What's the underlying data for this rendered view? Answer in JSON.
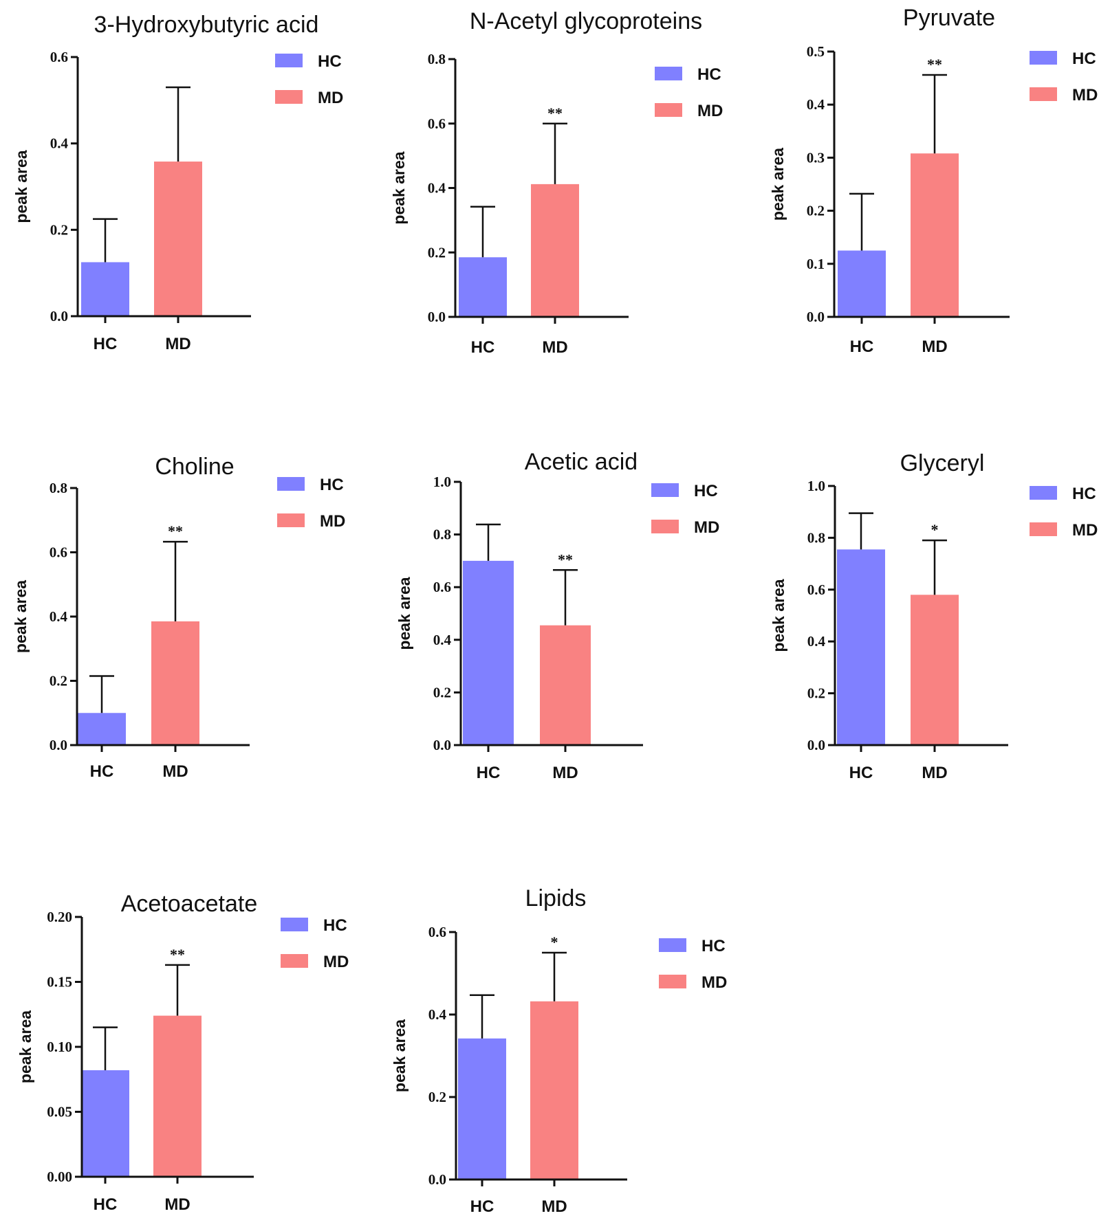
{
  "colors": {
    "HC": "#8080ff",
    "MD": "#f98282",
    "axis": "#111111"
  },
  "chart_data": [
    {
      "type": "bar",
      "title": "3-Hydroxybutyric acid",
      "ylabel": "peak area",
      "xlabel": "",
      "categories": [
        "HC",
        "MD"
      ],
      "values": [
        0.125,
        0.358
      ],
      "errors": [
        0.1,
        0.172
      ],
      "ylim": [
        0,
        0.6
      ],
      "yticks": [
        "0.0",
        "0.2",
        "0.4",
        "0.6"
      ],
      "significance": "",
      "legend": [
        "HC",
        "MD"
      ]
    },
    {
      "type": "bar",
      "title": "N-Acetyl glycoproteins",
      "ylabel": "peak area",
      "xlabel": "",
      "categories": [
        "HC",
        "MD"
      ],
      "values": [
        0.185,
        0.412
      ],
      "errors": [
        0.157,
        0.188
      ],
      "ylim": [
        0,
        0.8
      ],
      "yticks": [
        "0.0",
        "0.2",
        "0.4",
        "0.6",
        "0.8"
      ],
      "significance": "**",
      "legend": [
        "HC",
        "MD"
      ]
    },
    {
      "type": "bar",
      "title": "Pyruvate",
      "ylabel": "peak area",
      "xlabel": "",
      "categories": [
        "HC",
        "MD"
      ],
      "values": [
        0.125,
        0.308
      ],
      "errors": [
        0.107,
        0.148
      ],
      "ylim": [
        0,
        0.5
      ],
      "yticks": [
        "0.0",
        "0.1",
        "0.2",
        "0.3",
        "0.4",
        "0.5"
      ],
      "significance": "**",
      "legend": [
        "HC",
        "MD"
      ]
    },
    {
      "type": "bar",
      "title": "Choline",
      "ylabel": "peak area",
      "xlabel": "",
      "categories": [
        "HC",
        "MD"
      ],
      "values": [
        0.1,
        0.385
      ],
      "errors": [
        0.115,
        0.248
      ],
      "ylim": [
        0,
        0.8
      ],
      "yticks": [
        "0.0",
        "0.2",
        "0.4",
        "0.6",
        "0.8"
      ],
      "significance": "**",
      "legend": [
        "HC",
        "MD"
      ]
    },
    {
      "type": "bar",
      "title": "Acetic acid",
      "ylabel": "peak area",
      "xlabel": "",
      "categories": [
        "HC",
        "MD"
      ],
      "values": [
        0.7,
        0.455
      ],
      "errors": [
        0.138,
        0.21
      ],
      "ylim": [
        0,
        1.0
      ],
      "yticks": [
        "0.0",
        "0.2",
        "0.4",
        "0.6",
        "0.8",
        "1.0"
      ],
      "significance": "**",
      "legend": [
        "HC",
        "MD"
      ]
    },
    {
      "type": "bar",
      "title": "Glyceryl",
      "ylabel": "peak area",
      "xlabel": "",
      "categories": [
        "HC",
        "MD"
      ],
      "values": [
        0.755,
        0.58
      ],
      "errors": [
        0.14,
        0.21
      ],
      "ylim": [
        0,
        1.0
      ],
      "yticks": [
        "0.0",
        "0.2",
        "0.4",
        "0.6",
        "0.8",
        "1.0"
      ],
      "significance": "*",
      "legend": [
        "HC",
        "MD"
      ]
    },
    {
      "type": "bar",
      "title": "Acetoacetate",
      "ylabel": "peak area",
      "xlabel": "",
      "categories": [
        "HC",
        "MD"
      ],
      "values": [
        0.082,
        0.124
      ],
      "errors": [
        0.033,
        0.039
      ],
      "ylim": [
        0,
        0.2
      ],
      "yticks": [
        "0.00",
        "0.05",
        "0.10",
        "0.15",
        "0.20"
      ],
      "significance": "**",
      "legend": [
        "HC",
        "MD"
      ]
    },
    {
      "type": "bar",
      "title": "Lipids",
      "ylabel": "peak area",
      "xlabel": "",
      "categories": [
        "HC",
        "MD"
      ],
      "values": [
        0.342,
        0.432
      ],
      "errors": [
        0.105,
        0.118
      ],
      "ylim": [
        0,
        0.6
      ],
      "yticks": [
        "0.0",
        "0.2",
        "0.4",
        "0.6"
      ],
      "significance": "*",
      "legend": [
        "HC",
        "MD"
      ]
    }
  ]
}
